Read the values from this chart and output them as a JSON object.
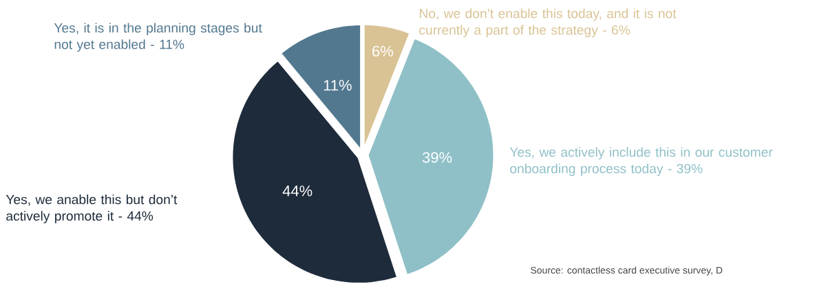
{
  "chart_data": {
    "type": "pie",
    "categories": [
      "No, we don’t enable this today, and it is not currently a part of the strategy - 6%",
      "Yes, we actively include this in our customer onboarding process today - 39%",
      "Yes, we anable this but don’t actively promote it - 44%",
      "Yes, it is in the planning stages but not yet enabled - 11%"
    ],
    "values": [
      6,
      39,
      44,
      11
    ],
    "colors": [
      "#d9c394",
      "#8fc0c7",
      "#1e2b3b",
      "#52788f"
    ],
    "value_labels": [
      "6%",
      "39%",
      "44%",
      "11%"
    ],
    "annotations": [
      "Source: contactless card executive survey, D"
    ]
  }
}
